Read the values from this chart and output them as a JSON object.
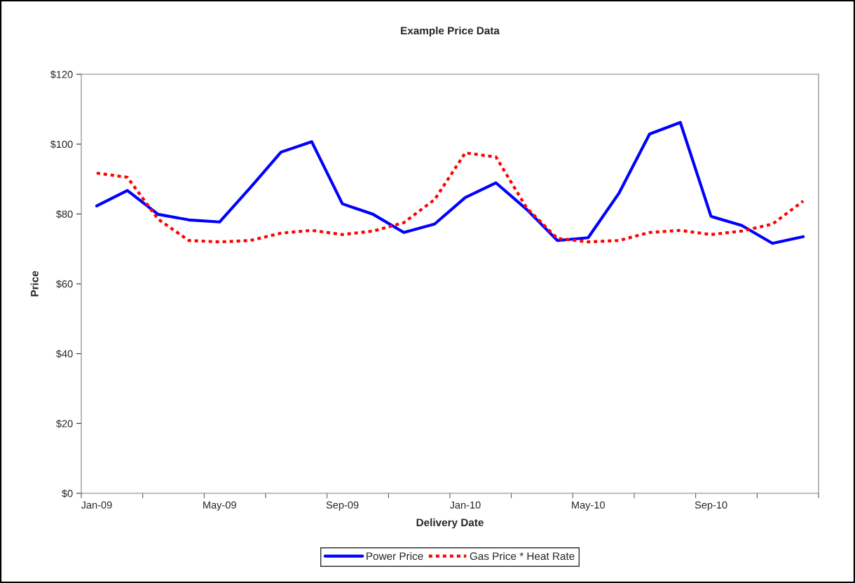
{
  "chart_data": {
    "type": "line",
    "title": "Example Price Data",
    "xlabel": "Delivery Date",
    "ylabel": "Price",
    "categories": [
      "Jan-09",
      null,
      null,
      null,
      "May-09",
      null,
      null,
      null,
      "Sep-09",
      null,
      null,
      null,
      "Jan-10",
      null,
      null,
      null,
      "May-10",
      null,
      null,
      null,
      "Sep-10",
      null,
      null,
      null
    ],
    "series": [
      {
        "name": "Power Price",
        "color": "#0000ff",
        "line_style": "solid",
        "values": [
          82.3,
          86.7,
          79.9,
          78.3,
          77.7,
          87.5,
          97.7,
          100.7,
          82.9,
          79.9,
          74.7,
          77.1,
          84.7,
          88.9,
          81.3,
          72.4,
          73.2,
          85.9,
          102.9,
          106.2,
          79.3,
          76.7,
          71.6,
          73.5
        ]
      },
      {
        "name": "Gas Price * Heat Rate",
        "color": "#ff0000",
        "line_style": "dashed",
        "values": [
          91.7,
          90.5,
          78.5,
          72.4,
          72.0,
          72.4,
          74.5,
          75.3,
          74.1,
          75.1,
          77.5,
          84.1,
          97.5,
          96.3,
          81.7,
          73.0,
          72.0,
          72.4,
          74.7,
          75.3,
          74.1,
          75.1,
          77.1,
          83.7
        ]
      }
    ],
    "ylim": [
      0,
      120
    ],
    "yticks": [
      {
        "value": 0,
        "label": "$0"
      },
      {
        "value": 20,
        "label": "$20"
      },
      {
        "value": 40,
        "label": "$40"
      },
      {
        "value": 60,
        "label": "$60"
      },
      {
        "value": 80,
        "label": "$80"
      },
      {
        "value": 100,
        "label": "$100"
      },
      {
        "value": 120,
        "label": "$120"
      }
    ],
    "grid": false,
    "legend": "bottom",
    "marker": "none"
  }
}
